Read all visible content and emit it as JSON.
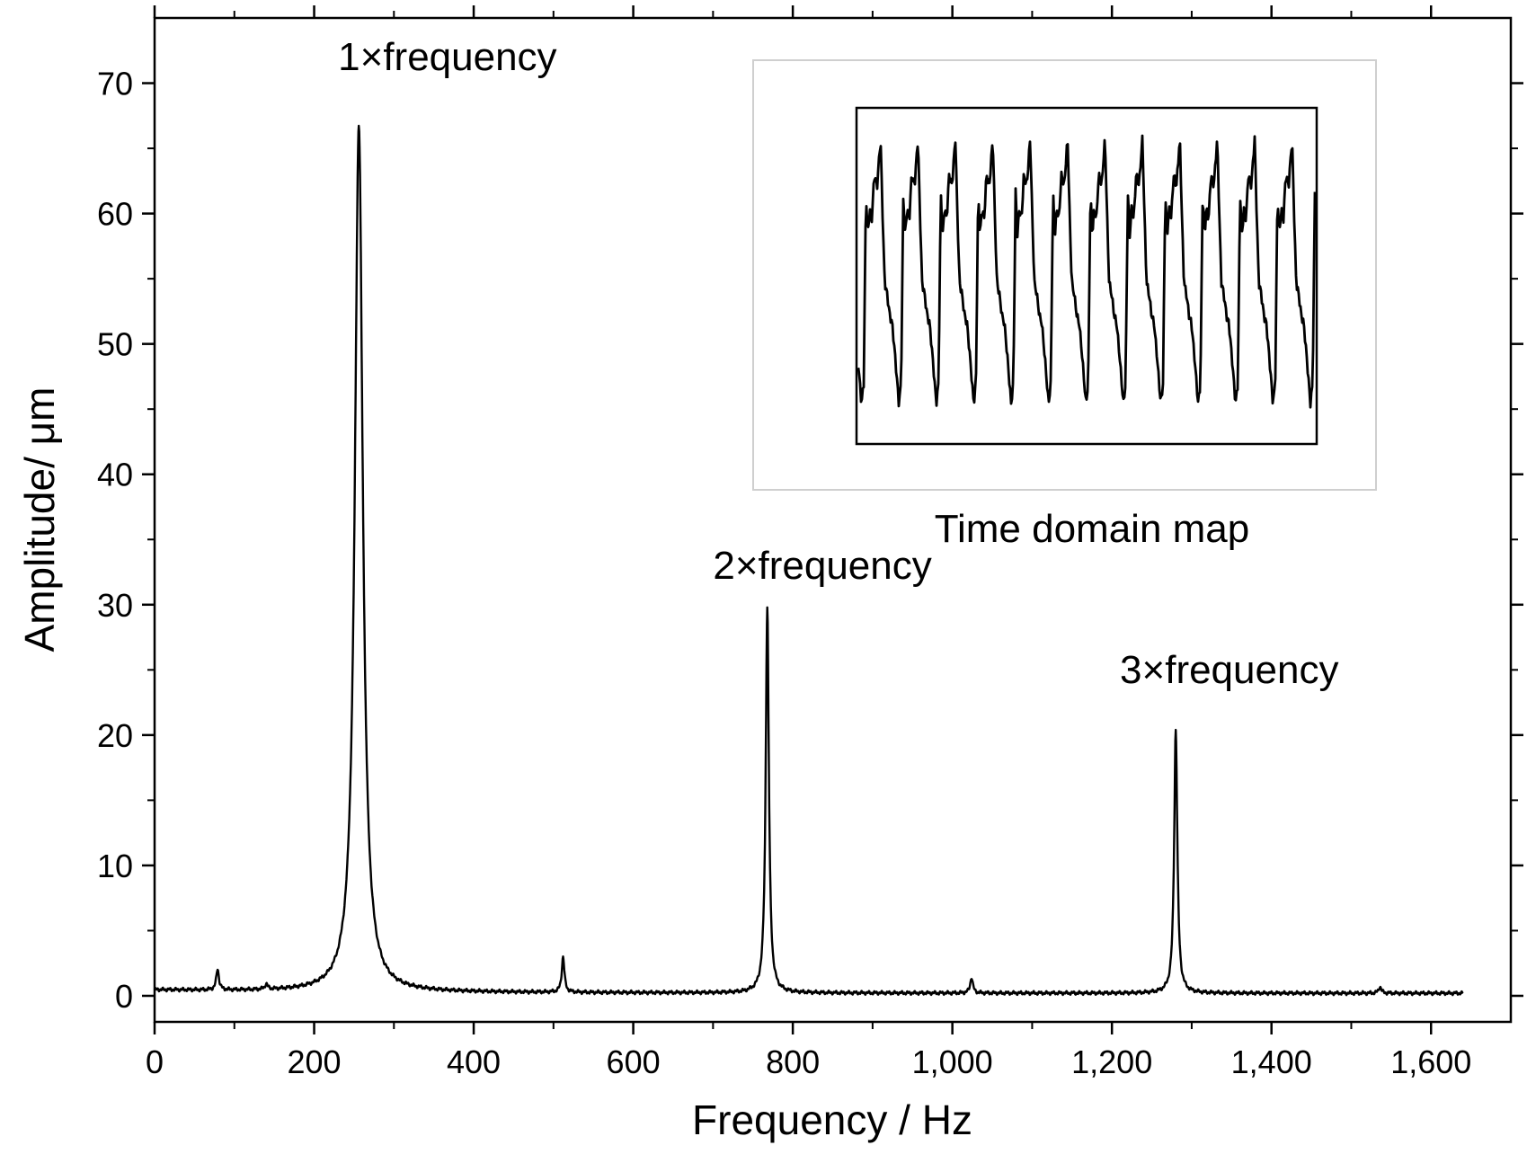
{
  "chart_data": {
    "type": "line",
    "title": "",
    "xlabel": "Frequency / Hz",
    "ylabel": "Amplitude/ μm",
    "xlim": [
      0,
      1700
    ],
    "ylim": [
      -2,
      75
    ],
    "x_ticks": [
      0,
      200,
      400,
      600,
      800,
      1000,
      1200,
      1400,
      1600
    ],
    "x_tick_labels": [
      "0",
      "200",
      "400",
      "600",
      "800",
      "1,000",
      "1,200",
      "1,400",
      "1,600"
    ],
    "y_ticks": [
      0,
      10,
      20,
      30,
      40,
      50,
      60,
      70
    ],
    "y_tick_labels": [
      "0",
      "10",
      "20",
      "30",
      "40",
      "50",
      "60",
      "70"
    ],
    "grid": false,
    "color": "#000000",
    "series": [
      {
        "peaks": [
          {
            "x": 79,
            "y": 1.9
          },
          {
            "x": 140,
            "y": 0.7
          },
          {
            "x": 256,
            "y": 66.8
          },
          {
            "x": 512,
            "y": 3.0
          },
          {
            "x": 768,
            "y": 29.9
          },
          {
            "x": 1024,
            "y": 1.5
          },
          {
            "x": 1280,
            "y": 20.5
          },
          {
            "x": 1536,
            "y": 0.8
          }
        ],
        "x_end": 1640
      }
    ],
    "annotations": [
      {
        "text": "1×frequency",
        "x": 230,
        "y": 71
      },
      {
        "text": "2×frequency",
        "x": 700,
        "y": 32
      },
      {
        "text": "3×frequency",
        "x": 1210,
        "y": 24
      }
    ],
    "inset": {
      "caption": "Time domain map",
      "type": "line",
      "cycles": 12
    }
  }
}
